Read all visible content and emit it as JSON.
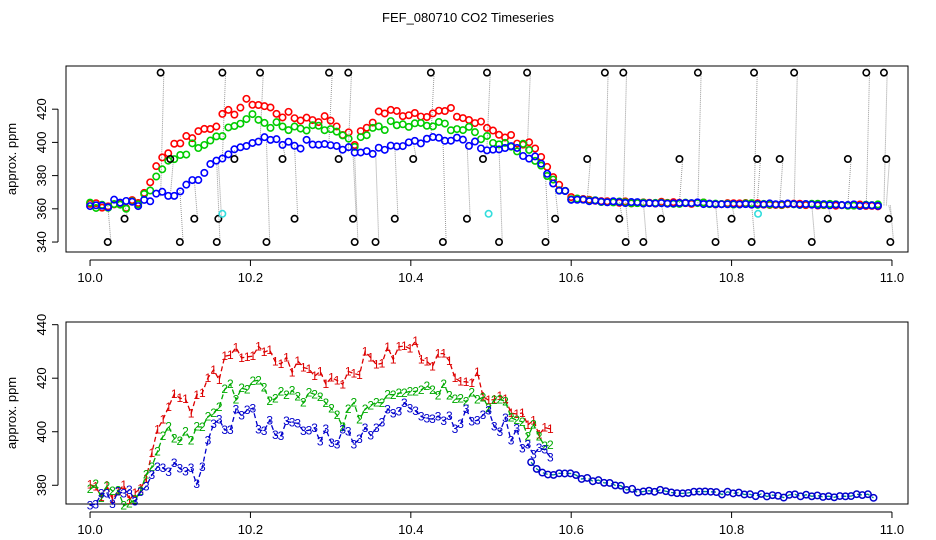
{
  "title": "FEF_080710  CO2 Timeseries",
  "chart_data": [
    {
      "type": "scatter",
      "panel": "top",
      "ylabel": "approx. ppm",
      "xlim": [
        9.97,
        11.02
      ],
      "ylim": [
        334,
        446
      ],
      "x_ticks": [
        10.0,
        10.2,
        10.4,
        10.6,
        10.8,
        11.0
      ],
      "x_tick_labels": [
        "10.0",
        "10.2",
        "10.4",
        "10.6",
        "10.8",
        "11.0"
      ],
      "y_ticks": [
        340,
        360,
        380,
        400,
        420
      ],
      "y_tick_labels": [
        "340",
        "360",
        "380",
        "400",
        "420"
      ],
      "series": [
        {
          "name": "red",
          "color": "#ff0000",
          "profile": [
            [
              10.0,
              363
            ],
            [
              10.06,
              363
            ],
            [
              10.08,
              382
            ],
            [
              10.1,
              398
            ],
            [
              10.15,
              410
            ],
            [
              10.2,
              425
            ],
            [
              10.25,
              415
            ],
            [
              10.3,
              414
            ],
            [
              10.33,
              400
            ],
            [
              10.36,
              418
            ],
            [
              10.45,
              418
            ],
            [
              10.5,
              408
            ],
            [
              10.55,
              398
            ],
            [
              10.58,
              375
            ],
            [
              10.6,
              367
            ],
            [
              10.65,
              364
            ],
            [
              11.0,
              362
            ]
          ],
          "start": 10.0,
          "end": 10.99
        },
        {
          "name": "green",
          "color": "#00cc00",
          "profile": [
            [
              10.0,
              363
            ],
            [
              10.06,
              363
            ],
            [
              10.08,
              375
            ],
            [
              10.1,
              390
            ],
            [
              10.15,
              403
            ],
            [
              10.2,
              415
            ],
            [
              10.25,
              407
            ],
            [
              10.3,
              408
            ],
            [
              10.33,
              397
            ],
            [
              10.36,
              410
            ],
            [
              10.45,
              410
            ],
            [
              10.5,
              402
            ],
            [
              10.55,
              395
            ],
            [
              10.58,
              375
            ],
            [
              10.6,
              366
            ],
            [
              10.65,
              364
            ],
            [
              11.0,
              362
            ]
          ],
          "start": 10.0,
          "end": 10.99
        },
        {
          "name": "blue",
          "color": "#0000ff",
          "profile": [
            [
              10.0,
              363
            ],
            [
              10.06,
              363
            ],
            [
              10.08,
              368
            ],
            [
              10.1,
              367
            ],
            [
              10.15,
              385
            ],
            [
              10.2,
              402
            ],
            [
              10.25,
              398
            ],
            [
              10.3,
              401
            ],
            [
              10.33,
              392
            ],
            [
              10.36,
              397
            ],
            [
              10.45,
              404
            ],
            [
              10.5,
              397
            ],
            [
              10.55,
              393
            ],
            [
              10.58,
              372
            ],
            [
              10.6,
              366
            ],
            [
              10.65,
              364
            ],
            [
              11.0,
              362
            ]
          ],
          "start": 10.0,
          "end": 10.99
        },
        {
          "name": "black-outliers",
          "color": "#000000",
          "points": [
            [
              10.022,
              340
            ],
            [
              10.043,
              354
            ],
            [
              10.088,
              442
            ],
            [
              10.1,
              390
            ],
            [
              10.112,
              340
            ],
            [
              10.13,
              354
            ],
            [
              10.158,
              340
            ],
            [
              10.16,
              354
            ],
            [
              10.165,
              442
            ],
            [
              10.18,
              390
            ],
            [
              10.212,
              442
            ],
            [
              10.22,
              340
            ],
            [
              10.24,
              390
            ],
            [
              10.255,
              354
            ],
            [
              10.298,
              442
            ],
            [
              10.31,
              390
            ],
            [
              10.322,
              442
            ],
            [
              10.328,
              354
            ],
            [
              10.33,
              340
            ],
            [
              10.356,
              340
            ],
            [
              10.38,
              354
            ],
            [
              10.403,
              390
            ],
            [
              10.425,
              442
            ],
            [
              10.44,
              340
            ],
            [
              10.47,
              354
            ],
            [
              10.49,
              390
            ],
            [
              10.495,
              442
            ],
            [
              10.51,
              340
            ],
            [
              10.545,
              442
            ],
            [
              10.568,
              340
            ],
            [
              10.58,
              354
            ],
            [
              10.62,
              390
            ],
            [
              10.642,
              442
            ],
            [
              10.66,
              354
            ],
            [
              10.665,
              442
            ],
            [
              10.668,
              340
            ],
            [
              10.69,
              340
            ],
            [
              10.712,
              354
            ],
            [
              10.735,
              390
            ],
            [
              10.758,
              442
            ],
            [
              10.78,
              340
            ],
            [
              10.8,
              354
            ],
            [
              10.825,
              340
            ],
            [
              10.828,
              442
            ],
            [
              10.832,
              390
            ],
            [
              10.86,
              390
            ],
            [
              10.878,
              442
            ],
            [
              10.9,
              340
            ],
            [
              10.92,
              354
            ],
            [
              10.945,
              390
            ],
            [
              10.968,
              442
            ],
            [
              10.99,
              442
            ],
            [
              10.993,
              390
            ],
            [
              10.996,
              354
            ],
            [
              10.998,
              340
            ]
          ]
        },
        {
          "name": "cyan-outliers",
          "color": "#33dddd",
          "points": [
            [
              10.165,
              357
            ],
            [
              10.497,
              357
            ],
            [
              10.833,
              357
            ]
          ]
        }
      ]
    },
    {
      "type": "line",
      "panel": "bottom",
      "ylabel": "approx. ppm",
      "xlim": [
        9.97,
        11.02
      ],
      "ylim": [
        373,
        441
      ],
      "x_ticks": [
        10.0,
        10.2,
        10.4,
        10.6,
        10.8,
        11.0
      ],
      "x_tick_labels": [
        "10.0",
        "10.2",
        "10.4",
        "10.6",
        "10.8",
        "11.0"
      ],
      "y_ticks": [
        380,
        400,
        420,
        440
      ],
      "y_tick_labels": [
        "380",
        "400",
        "420",
        "440"
      ],
      "series": [
        {
          "name": "1",
          "color": "#dd0000",
          "marker": "1",
          "start": 10.0,
          "end": 10.58,
          "profile": [
            [
              10.0,
              378
            ],
            [
              10.06,
              378
            ],
            [
              10.08,
              395
            ],
            [
              10.1,
              415
            ],
            [
              10.13,
              410
            ],
            [
              10.15,
              420
            ],
            [
              10.19,
              430
            ],
            [
              10.22,
              428
            ],
            [
              10.28,
              422
            ],
            [
              10.31,
              420
            ],
            [
              10.34,
              426
            ],
            [
              10.37,
              428
            ],
            [
              10.4,
              432
            ],
            [
              10.45,
              425
            ],
            [
              10.5,
              415
            ],
            [
              10.55,
              405
            ],
            [
              10.58,
              398
            ]
          ]
        },
        {
          "name": "2",
          "color": "#00aa00",
          "marker": "2",
          "start": 10.0,
          "end": 10.58,
          "profile": [
            [
              10.0,
              377
            ],
            [
              10.06,
              376
            ],
            [
              10.08,
              388
            ],
            [
              10.1,
              400
            ],
            [
              10.13,
              398
            ],
            [
              10.15,
              408
            ],
            [
              10.19,
              418
            ],
            [
              10.22,
              414
            ],
            [
              10.28,
              412
            ],
            [
              10.31,
              405
            ],
            [
              10.34,
              408
            ],
            [
              10.37,
              415
            ],
            [
              10.4,
              418
            ],
            [
              10.45,
              416
            ],
            [
              10.5,
              412
            ],
            [
              10.55,
              400
            ],
            [
              10.58,
              394
            ]
          ]
        },
        {
          "name": "3",
          "color": "#0000cc",
          "marker": "3",
          "start": 10.0,
          "end": 10.58,
          "profile": [
            [
              10.0,
              376
            ],
            [
              10.06,
              375
            ],
            [
              10.08,
              383
            ],
            [
              10.1,
              386
            ],
            [
              10.13,
              382
            ],
            [
              10.15,
              398
            ],
            [
              10.19,
              408
            ],
            [
              10.22,
              402
            ],
            [
              10.28,
              400
            ],
            [
              10.31,
              398
            ],
            [
              10.34,
              400
            ],
            [
              10.37,
              405
            ],
            [
              10.4,
              410
            ],
            [
              10.45,
              405
            ],
            [
              10.5,
              405
            ],
            [
              10.55,
              395
            ],
            [
              10.58,
              390
            ]
          ]
        },
        {
          "name": "tail",
          "color": "#008888",
          "marker": "o",
          "start": 10.55,
          "end": 10.98,
          "profile": [
            [
              10.55,
              388
            ],
            [
              10.57,
              384
            ],
            [
              10.6,
              384
            ],
            [
              10.65,
              380
            ],
            [
              10.68,
              378
            ],
            [
              10.8,
              377
            ],
            [
              10.85,
              376
            ],
            [
              10.98,
              376
            ]
          ]
        }
      ]
    }
  ]
}
